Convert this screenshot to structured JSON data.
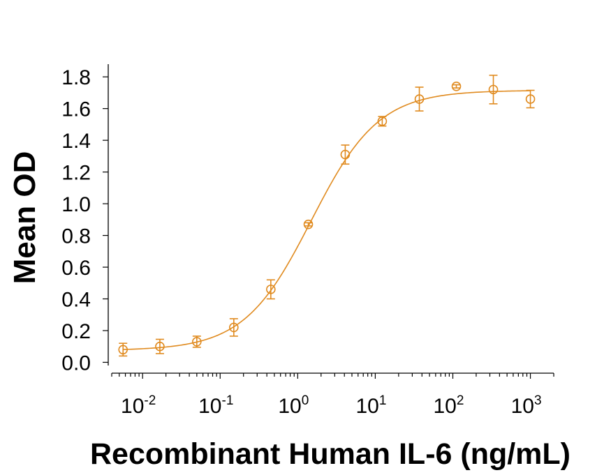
{
  "chart_data": {
    "type": "scatter",
    "xlabel": "Recombinant Human IL-6 (ng/mL)",
    "ylabel": "Mean OD",
    "xscale": "log",
    "xlim": [
      0.004,
      2000
    ],
    "ylim": [
      -0.02,
      1.88
    ],
    "x_ticks": [
      {
        "base": "10",
        "exp": "-2",
        "value": 0.01
      },
      {
        "base": "10",
        "exp": "-1",
        "value": 0.1
      },
      {
        "base": "10",
        "exp": "0",
        "value": 1
      },
      {
        "base": "10",
        "exp": "1",
        "value": 10
      },
      {
        "base": "10",
        "exp": "2",
        "value": 100
      },
      {
        "base": "10",
        "exp": "3",
        "value": 1000
      }
    ],
    "y_ticks": [
      "0.0",
      "0.2",
      "0.4",
      "0.6",
      "0.8",
      "1.0",
      "1.2",
      "1.4",
      "1.6",
      "1.8"
    ],
    "color": "#E08A1E",
    "marker": "open-circle",
    "fit": "four-parameter logistic",
    "series": [
      {
        "points": [
          {
            "x": 0.0056,
            "y": 0.08,
            "err": 0.04
          },
          {
            "x": 0.0167,
            "y": 0.1,
            "err": 0.045
          },
          {
            "x": 0.05,
            "y": 0.13,
            "err": 0.035
          },
          {
            "x": 0.15,
            "y": 0.22,
            "err": 0.055
          },
          {
            "x": 0.45,
            "y": 0.46,
            "err": 0.06
          },
          {
            "x": 1.37,
            "y": 0.87,
            "err": 0.01
          },
          {
            "x": 4.1,
            "y": 1.31,
            "err": 0.06
          },
          {
            "x": 12.3,
            "y": 1.52,
            "err": 0.03
          },
          {
            "x": 37,
            "y": 1.66,
            "err": 0.075
          },
          {
            "x": 111,
            "y": 1.74,
            "err": 0.01
          },
          {
            "x": 333,
            "y": 1.72,
            "err": 0.09
          },
          {
            "x": 1000,
            "y": 1.66,
            "err": 0.055
          }
        ]
      }
    ]
  }
}
